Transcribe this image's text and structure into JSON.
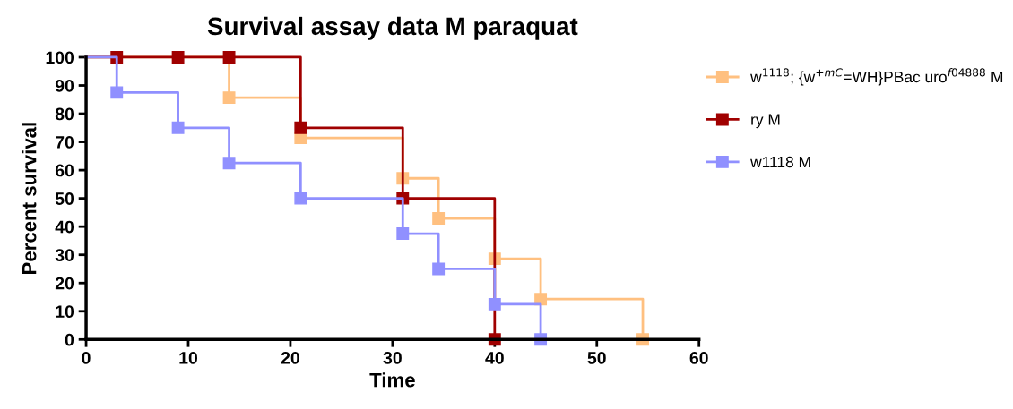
{
  "chart_data": {
    "type": "step",
    "title": "Survival assay data M paraquat",
    "xlabel": "Time",
    "ylabel": "Percent survival",
    "series": [
      {
        "name": "w$^{1118}$; {w$^{+mC}$=WH}PBac uro$^{f04888}$ M",
        "color": "#ffc080",
        "x": [
          0,
          14,
          21,
          31,
          34.5,
          40,
          44.5,
          54.5
        ],
        "values": [
          100,
          85.7,
          71.4,
          57.1,
          42.9,
          28.6,
          14.3,
          0
        ]
      },
      {
        "name": "ry M",
        "color": "#a00000",
        "x": [
          0,
          3,
          9,
          14,
          21,
          31,
          40
        ],
        "values": [
          100,
          100,
          100,
          100,
          75,
          50,
          0
        ]
      },
      {
        "name": "w1118 M",
        "color": "#9090ff",
        "x": [
          0,
          3,
          9,
          14,
          21,
          31,
          34.5,
          40,
          44.5
        ],
        "values": [
          100,
          87.5,
          75,
          62.5,
          50,
          37.5,
          25,
          12.5,
          0
        ]
      }
    ],
    "xlim": [
      0,
      60
    ],
    "xticks": [
      0,
      10,
      20,
      30,
      40,
      50,
      60
    ],
    "ylim": [
      0,
      100
    ],
    "yticks": [
      0,
      10,
      20,
      30,
      40,
      50,
      60,
      70,
      80,
      90,
      100
    ],
    "grid": false,
    "legend": "right",
    "marker": "square",
    "line_style": "solid"
  }
}
